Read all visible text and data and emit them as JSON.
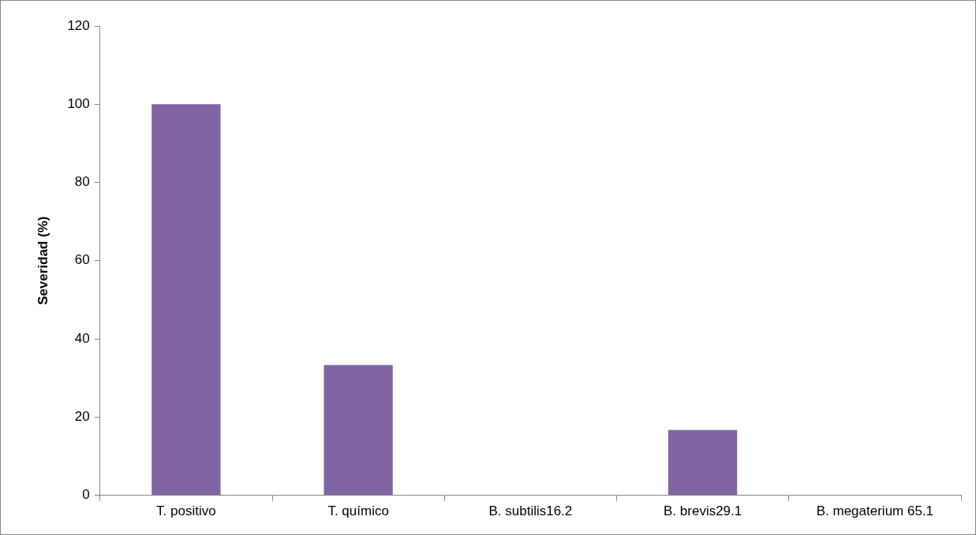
{
  "chart_data": {
    "type": "bar",
    "ylabel": "Severidad (%)",
    "categories": [
      "T. positivo",
      "T. químico",
      "B. subtilis16.2",
      "B. brevis29.1",
      "B. megaterium 65.1"
    ],
    "values": [
      100,
      33.3,
      0,
      16.7,
      0
    ],
    "color": "#8064a2",
    "ylim": [
      0,
      120
    ],
    "yticks": [
      0,
      20,
      40,
      60,
      80,
      100,
      120
    ],
    "grid": false,
    "legend": false
  }
}
